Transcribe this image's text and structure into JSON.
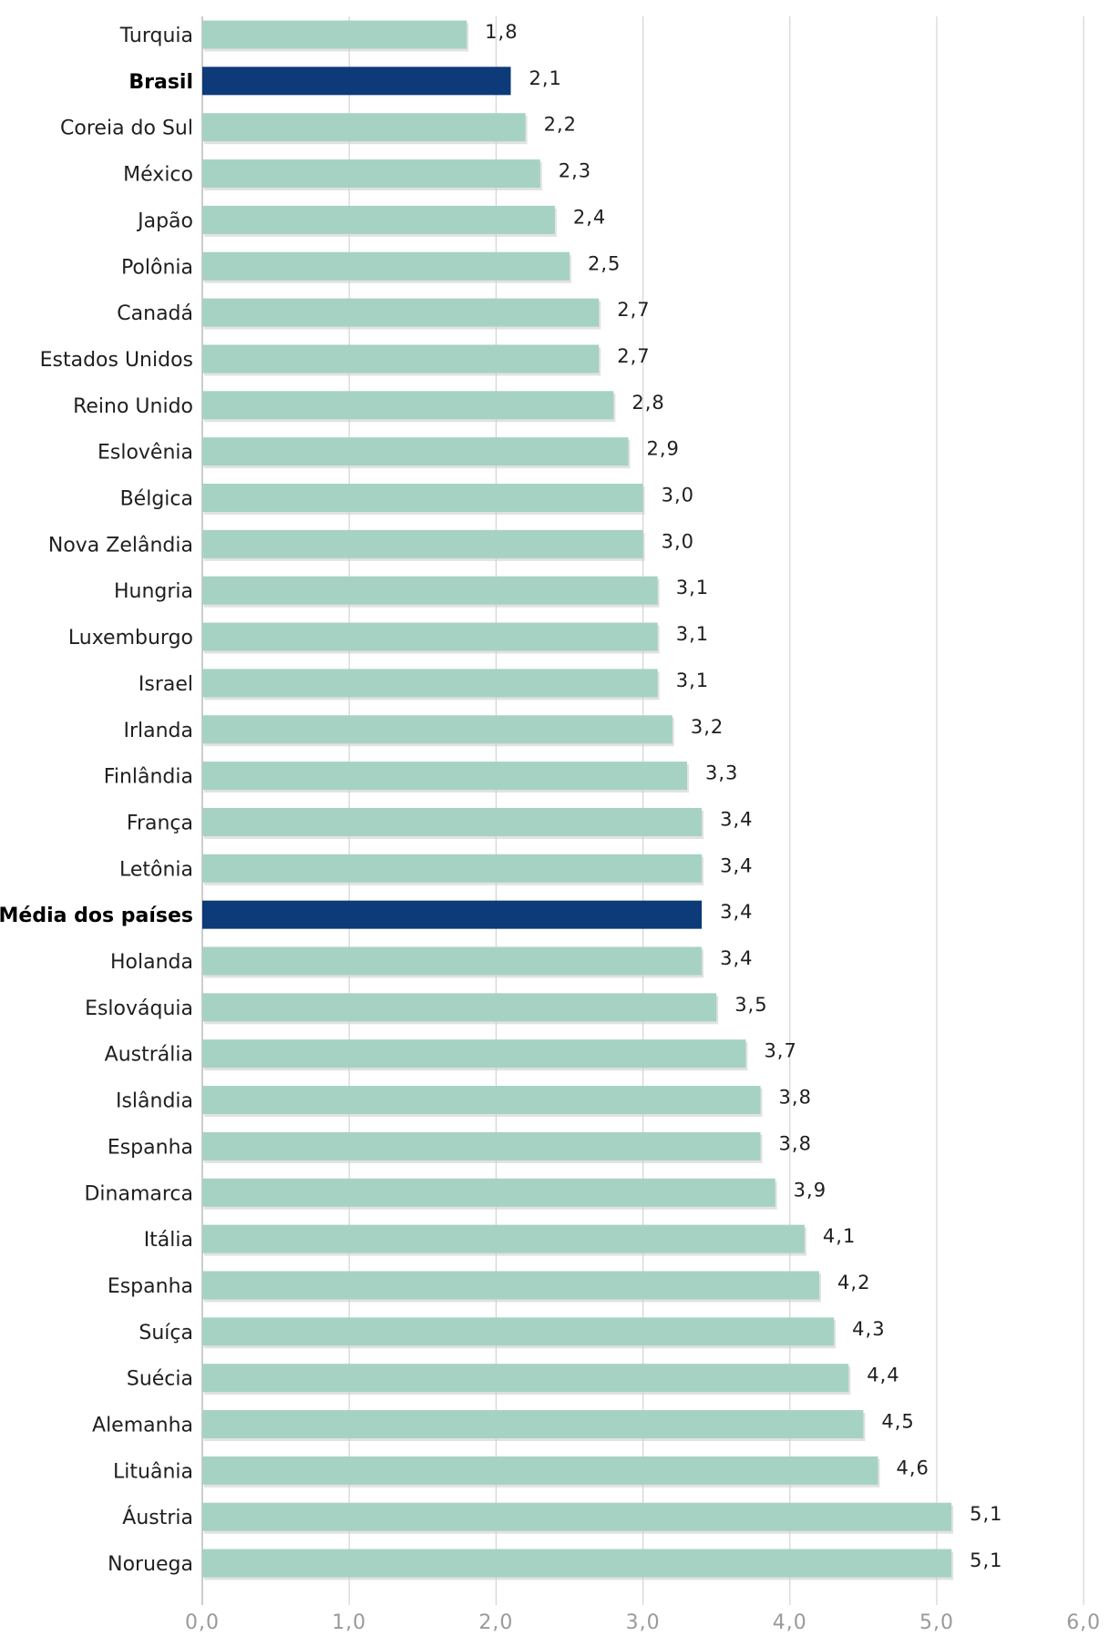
{
  "chart_data": {
    "type": "bar",
    "orientation": "horizontal",
    "title": "",
    "xlabel": "",
    "ylabel": "",
    "xlim": [
      0,
      6
    ],
    "ticks": [
      "0,0",
      "1,0",
      "2,0",
      "3,0",
      "4,0",
      "5,0",
      "6,0"
    ],
    "grid": true,
    "colors": {
      "bar": "#a6d2c3",
      "highlight": "#0d3a78",
      "grid": "#d4d4d4"
    },
    "categories": [
      "Turquia",
      "Brasil",
      "Coreia do Sul",
      "México",
      "Japão",
      "Polônia",
      "Canadá",
      "Estados Unidos",
      "Reino Unido",
      "Eslovênia",
      "Bélgica",
      "Nova Zelândia",
      "Hungria",
      "Luxemburgo",
      "Israel",
      "Irlanda",
      "Finlândia",
      "França",
      "Letônia",
      "Média dos países",
      "Holanda",
      "Eslováquia",
      "Austrália",
      "Islândia",
      "Espanha",
      "Dinamarca",
      "Itália",
      "Espanha",
      "Suíça",
      "Suécia",
      "Alemanha",
      "Lituânia",
      "Áustria",
      "Noruega"
    ],
    "values": [
      1.8,
      2.1,
      2.2,
      2.3,
      2.4,
      2.5,
      2.7,
      2.7,
      2.8,
      2.9,
      3.0,
      3.0,
      3.1,
      3.1,
      3.1,
      3.2,
      3.3,
      3.4,
      3.4,
      3.4,
      3.4,
      3.5,
      3.7,
      3.8,
      3.8,
      3.9,
      4.1,
      4.2,
      4.3,
      4.4,
      4.5,
      4.6,
      5.1,
      5.1
    ],
    "value_labels": [
      "1,8",
      "2,1",
      "2,2",
      "2,3",
      "2,4",
      "2,5",
      "2,7",
      "2,7",
      "2,8",
      "2,9",
      "3,0",
      "3,0",
      "3,1",
      "3,1",
      "3,1",
      "3,2",
      "3,3",
      "3,4",
      "3,4",
      "3,4",
      "3,4",
      "3,5",
      "3,7",
      "3,8",
      "3,8",
      "3,9",
      "4,1",
      "4,2",
      "4,3",
      "4,4",
      "4,5",
      "4,6",
      "5,1",
      "5,1"
    ],
    "highlighted": [
      "Brasil",
      "Média dos países"
    ]
  }
}
